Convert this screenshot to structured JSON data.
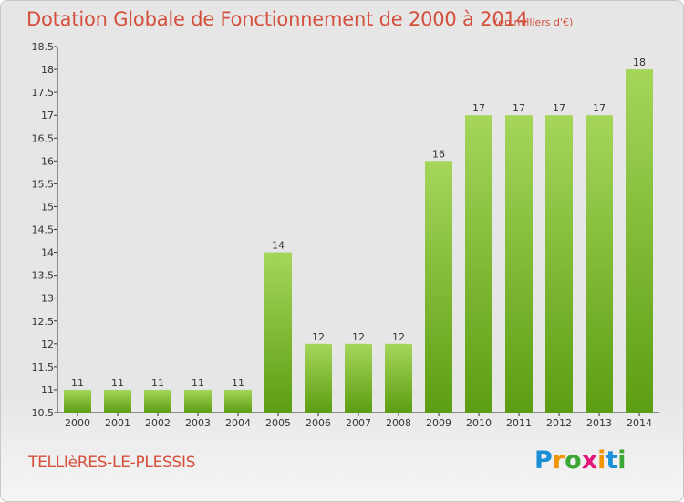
{
  "title": "Dotation Globale de Fonctionnement de 2000 à 2014",
  "subtitle": "(en milliers d'€)",
  "commune": "TELLIèRES-LE-PLESSIS",
  "logo": {
    "letters": [
      "P",
      "r",
      "o",
      "x",
      "i",
      "t",
      "i"
    ],
    "colors": [
      "#1a8fd6",
      "#f29400",
      "#3ca735",
      "#e3157a",
      "#f29400",
      "#1a8fd6",
      "#3ca735"
    ]
  },
  "colors": {
    "bar_top": "#a5d65a",
    "bar_bottom": "#5c9e12",
    "text": "#d4503c",
    "axis": "#333333"
  },
  "chart_data": {
    "type": "bar",
    "title": "Dotation Globale de Fonctionnement de 2000 à 2014",
    "subtitle": "(en milliers d'€)",
    "xlabel": "",
    "ylabel": "",
    "categories": [
      "2000",
      "2001",
      "2002",
      "2003",
      "2004",
      "2005",
      "2006",
      "2007",
      "2008",
      "2009",
      "2010",
      "2011",
      "2012",
      "2013",
      "2014"
    ],
    "values": [
      11,
      11,
      11,
      11,
      11,
      14,
      12,
      12,
      12,
      16,
      17,
      17,
      17,
      17,
      18
    ],
    "ylim": [
      10.5,
      18.5
    ],
    "yticks": [
      "10.5",
      "11",
      "11.5",
      "12",
      "12.5",
      "13",
      "13.5",
      "14",
      "14.5",
      "15",
      "15.5",
      "16",
      "16.5",
      "17",
      "17.5",
      "18",
      "18.5"
    ],
    "grid": false,
    "legend": "none"
  }
}
